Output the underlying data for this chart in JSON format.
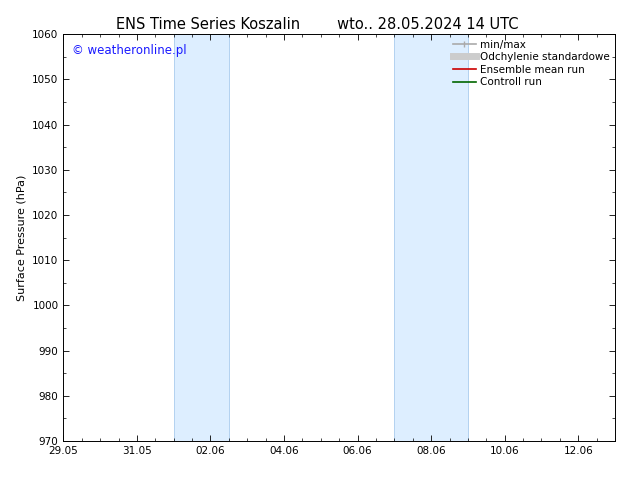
{
  "title_left": "ENS Time Series Koszalin",
  "title_right": "wto.. 28.05.2024 14 UTC",
  "ylabel": "Surface Pressure (hPa)",
  "ylim": [
    970,
    1060
  ],
  "yticks": [
    970,
    980,
    990,
    1000,
    1010,
    1020,
    1030,
    1040,
    1050,
    1060
  ],
  "xtick_labels": [
    "29.05",
    "31.05",
    "02.06",
    "04.06",
    "06.06",
    "08.06",
    "10.06",
    "12.06"
  ],
  "xtick_positions_days": [
    0,
    2,
    4,
    6,
    8,
    10,
    12,
    14
  ],
  "xlim": [
    0,
    15
  ],
  "shaded_bands": [
    {
      "start_day": 3.0,
      "end_day": 4.5
    },
    {
      "start_day": 9.0,
      "end_day": 11.0
    }
  ],
  "shaded_color": "#ddeeff",
  "shaded_edge_color": "#aaccee",
  "background_color": "#ffffff",
  "watermark_text": "© weatheronline.pl",
  "watermark_color": "#1a1aff",
  "watermark_fontsize": 8.5,
  "legend_items": [
    {
      "label": "min/max",
      "color": "#aaaaaa",
      "lw": 1.2,
      "style": "-"
    },
    {
      "label": "Odchylenie standardowe",
      "color": "#cccccc",
      "lw": 5,
      "style": "-"
    },
    {
      "label": "Ensemble mean run",
      "color": "#cc0000",
      "lw": 1.2,
      "style": "-"
    },
    {
      "label": "Controll run",
      "color": "#006600",
      "lw": 1.2,
      "style": "-"
    }
  ],
  "title_fontsize": 10.5,
  "ylabel_fontsize": 8,
  "tick_fontsize": 7.5,
  "legend_fontsize": 7.5
}
